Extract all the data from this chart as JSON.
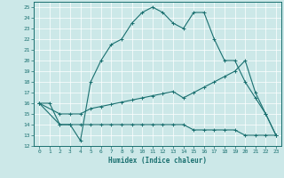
{
  "xlabel": "Humidex (Indice chaleur)",
  "bg_color": "#cce8e8",
  "grid_color": "#ffffff",
  "line_color": "#1a7070",
  "xlim": [
    -0.5,
    23.5
  ],
  "ylim": [
    12,
    25.5
  ],
  "xticks": [
    0,
    1,
    2,
    3,
    4,
    5,
    6,
    7,
    8,
    9,
    10,
    11,
    12,
    13,
    14,
    15,
    16,
    17,
    18,
    19,
    20,
    21,
    22,
    23
  ],
  "yticks": [
    12,
    13,
    14,
    15,
    16,
    17,
    18,
    19,
    20,
    21,
    22,
    23,
    24,
    25
  ],
  "line1_x": [
    0,
    1,
    2,
    3,
    4,
    5,
    6,
    7,
    8,
    9,
    10,
    11,
    12,
    13,
    14,
    15,
    16,
    17,
    18,
    19,
    20,
    21,
    22,
    23
  ],
  "line1_y": [
    16,
    16,
    14,
    14,
    12.5,
    18,
    20,
    21.5,
    22,
    23.5,
    24.5,
    25,
    24.5,
    23.5,
    23,
    24.5,
    24.5,
    22,
    20,
    20,
    18,
    16.5,
    15,
    13
  ],
  "line2_x": [
    0,
    2,
    3,
    4,
    5,
    6,
    7,
    8,
    9,
    10,
    11,
    12,
    13,
    14,
    15,
    16,
    17,
    18,
    19,
    20,
    21,
    22,
    23
  ],
  "line2_y": [
    16,
    14,
    14,
    14,
    14,
    14,
    14,
    14,
    14,
    14,
    14,
    14,
    14,
    14,
    13.5,
    13.5,
    13.5,
    13.5,
    13.5,
    13,
    13,
    13,
    13
  ],
  "line3_x": [
    0,
    2,
    3,
    4,
    5,
    6,
    7,
    8,
    9,
    10,
    11,
    12,
    13,
    14,
    15,
    16,
    17,
    18,
    19,
    20,
    21,
    22,
    23
  ],
  "line3_y": [
    16,
    15,
    15,
    15,
    15.5,
    15.7,
    15.9,
    16.1,
    16.3,
    16.5,
    16.7,
    16.9,
    17.1,
    16.5,
    17,
    17.5,
    18,
    18.5,
    19,
    20,
    17,
    15,
    13
  ]
}
